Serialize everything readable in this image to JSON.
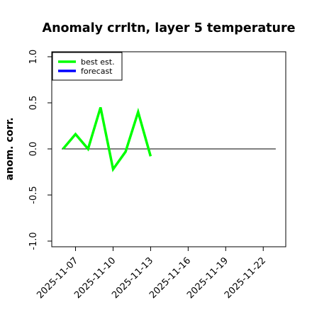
{
  "chart_data": {
    "type": "line",
    "title": "Anomaly crrltn, layer 5 temperature",
    "xlabel": "",
    "ylabel": "anom. corr.",
    "ylim": [
      -1.0,
      1.0
    ],
    "y_ticks": [
      "-1.0",
      "-0.5",
      "0.0",
      "0.5",
      "1.0"
    ],
    "x_tick_values": [
      7,
      10,
      13,
      16,
      19,
      22
    ],
    "x_tick_labels": [
      "2025-11-07",
      "2025-11-10",
      "2025-11-13",
      "2025-11-16",
      "2025-11-19",
      "2025-11-22"
    ],
    "highlight_tick": "2025-11-13",
    "highlight_color": "#228B22",
    "xlim": [
      5.1,
      23.8
    ],
    "reference_line": {
      "y": 0,
      "x_start": 5.9,
      "x_end": 23.0,
      "color": "#000000"
    },
    "legend": {
      "placement": "top-left",
      "entries": [
        {
          "label": "best est.",
          "color": "#00ff00"
        },
        {
          "label": "forecast",
          "color": "#0000ff"
        }
      ]
    },
    "series": [
      {
        "name": "best est.",
        "color": "#00ff00",
        "x": [
          6,
          7,
          8,
          9,
          10,
          11,
          12,
          13
        ],
        "y": [
          0.0,
          0.16,
          0.0,
          0.45,
          -0.22,
          -0.03,
          0.4,
          -0.08
        ]
      }
    ]
  }
}
